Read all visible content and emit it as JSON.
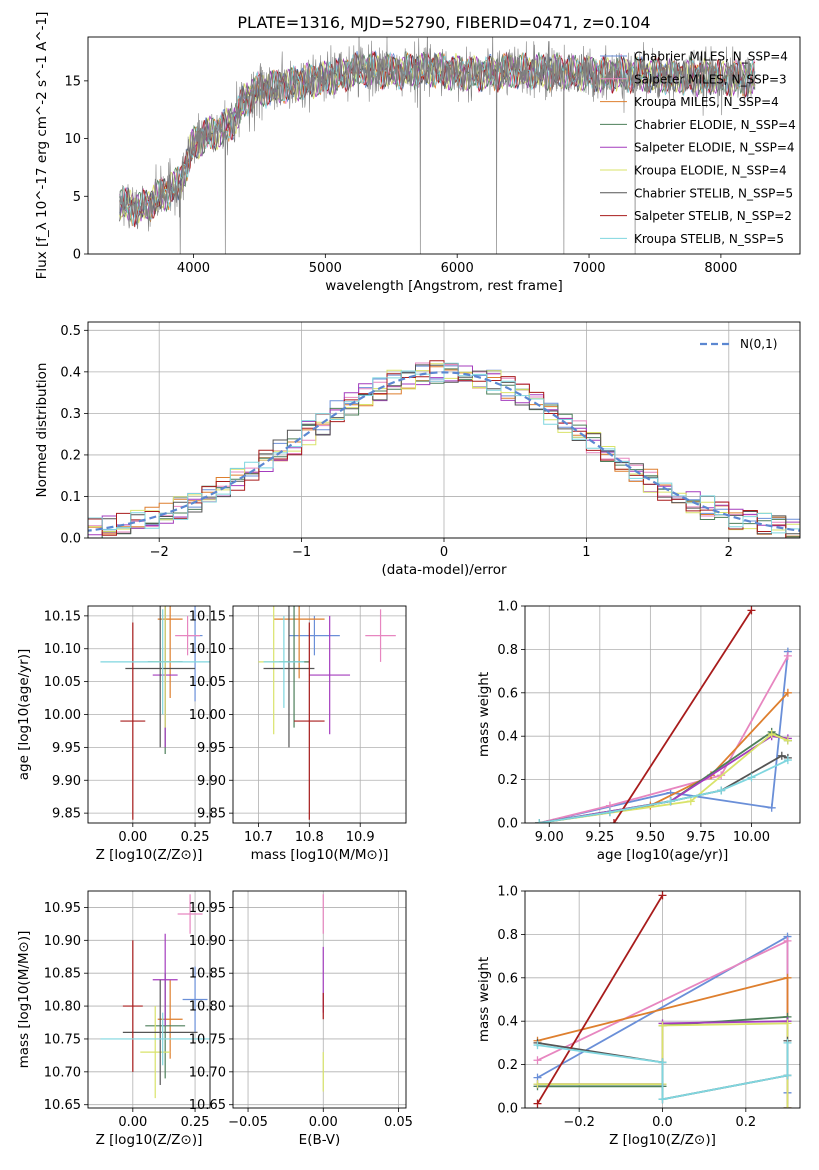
{
  "colors": {
    "chabrier_miles": "#6a8fd8",
    "salpeter_miles": "#e786c0",
    "kroupa_miles": "#de7f2e",
    "chabrier_elodie": "#4d7f5a",
    "salpeter_elodie": "#a43cbe",
    "kroupa_elodie": "#d9e36a",
    "chabrier_stelib": "#555555",
    "salpeter_stelib": "#a81c1c",
    "kroupa_stelib": "#7fd6df",
    "data": "#7f7f7f",
    "gaussian": "#5b87d1",
    "grid": "#b0b0b0"
  },
  "chart_data": [
    {
      "type": "line",
      "title": "PLATE=1316, MJD=52790, FIBERID=0471, z=0.104",
      "xlabel": "wavelength [Angstrom, rest frame]",
      "ylabel": "Flux [f_λ 10^-17 erg cm^-2 s^-1 A^-1]",
      "xlim": [
        3200,
        8600
      ],
      "ylim": [
        0,
        18.8
      ],
      "xticks": [
        "4000",
        "5000",
        "6000",
        "7000",
        "8000"
      ],
      "yticks": [
        "0",
        "5",
        "10",
        "15"
      ],
      "grid": false,
      "legend": "upper right",
      "legend_entries": [
        "Chabrier MILES, N_SSP=4",
        "Salpeter MILES, N_SSP=3",
        "Kroupa MILES, N_SSP=4",
        "Chabrier ELODIE, N_SSP=4",
        "Salpeter ELODIE, N_SSP=4",
        "Kroupa ELODIE, N_SSP=4",
        "Chabrier STELIB, N_SSP=5",
        "Salpeter STELIB, N_SSP=2",
        "Kroupa STELIB, N_SSP=5"
      ],
      "continuum_x": [
        3450,
        3600,
        3750,
        3900,
        4000,
        4100,
        4200,
        4300,
        4400,
        4500,
        4700,
        4900,
        5100,
        5300,
        5500,
        5800,
        6100,
        6400,
        6700,
        7000,
        7300,
        7600,
        7900,
        8250
      ],
      "continuum_y": [
        4.3,
        3.9,
        5.0,
        6.2,
        9.5,
        10.3,
        10.7,
        11.5,
        13.5,
        14.2,
        14.6,
        15.0,
        15.5,
        16.0,
        15.8,
        16.0,
        15.6,
        15.8,
        15.8,
        15.6,
        15.6,
        15.4,
        15.3,
        15.2
      ]
    },
    {
      "type": "histogram",
      "xlabel": "(data-model)/error",
      "ylabel": "Normed distribution",
      "xlim": [
        -2.5,
        2.5
      ],
      "ylim": [
        0,
        0.52
      ],
      "xticks": [
        "−2",
        "−1",
        "0",
        "1",
        "2"
      ],
      "yticks": [
        "0.0",
        "0.1",
        "0.2",
        "0.3",
        "0.4",
        "0.5"
      ],
      "grid": true,
      "legend": "upper right",
      "legend_entries": [
        "N(0,1)"
      ],
      "bin_width": 0.1
    },
    {
      "type": "scatter",
      "xlabel": "Z [log10(Z/Z⊙)]",
      "ylabel": "age [log10(age/yr)]",
      "xlim": [
        -0.18,
        0.31
      ],
      "ylim": [
        9.835,
        10.165
      ],
      "xticks": [
        "0.00",
        "0.25"
      ],
      "yticks": [
        "9.85",
        "9.90",
        "9.95",
        "10.00",
        "10.05",
        "10.10",
        "10.15"
      ],
      "grid": true,
      "points": [
        {
          "x": 0.25,
          "y": 10.12,
          "xerr": 0.03,
          "yerr": 0.1,
          "color": "chabrier_miles"
        },
        {
          "x": 0.22,
          "y": 10.12,
          "xerr": 0.05,
          "yerr": 0.03,
          "color": "salpeter_miles"
        },
        {
          "x": 0.15,
          "y": 10.145,
          "xerr": 0.05,
          "yerr": 0.12,
          "color": "kroupa_miles"
        },
        {
          "x": 0.13,
          "y": 10.08,
          "xerr": 0.07,
          "yerr": 0.14,
          "color": "chabrier_elodie"
        },
        {
          "x": 0.13,
          "y": 10.06,
          "xerr": 0.05,
          "yerr": 0.11,
          "color": "salpeter_elodie"
        },
        {
          "x": 0.13,
          "y": 10.08,
          "xerr": 0.05,
          "yerr": 0.1,
          "color": "kroupa_elodie"
        },
        {
          "x": 0.11,
          "y": 10.07,
          "xerr": 0.14,
          "yerr": 0.12,
          "color": "chabrier_stelib"
        },
        {
          "x": 0.0,
          "y": 9.99,
          "xerr": 0.05,
          "yerr": 0.15,
          "color": "salpeter_stelib"
        },
        {
          "x": 0.12,
          "y": 10.08,
          "xerr": 0.25,
          "yerr": 0.08,
          "color": "kroupa_stelib"
        }
      ]
    },
    {
      "type": "scatter",
      "xlabel": "mass [log10(M/M⊙)]",
      "ylabel": "",
      "xlim": [
        10.65,
        10.99
      ],
      "ylim": [
        9.835,
        10.165
      ],
      "xticks": [
        "10.7",
        "10.8",
        "10.9"
      ],
      "yticks": [
        "9.85",
        "9.90",
        "9.95",
        "10.00",
        "10.05",
        "10.10",
        "10.15"
      ],
      "grid": true,
      "points": [
        {
          "x": 10.81,
          "y": 10.12,
          "xerr": 0.05,
          "yerr": 0.03,
          "color": "chabrier_miles"
        },
        {
          "x": 10.94,
          "y": 10.12,
          "xerr": 0.03,
          "yerr": 0.04,
          "color": "salpeter_miles"
        },
        {
          "x": 10.78,
          "y": 10.145,
          "xerr": 0.05,
          "yerr": 0.09,
          "color": "kroupa_miles"
        },
        {
          "x": 10.77,
          "y": 10.08,
          "xerr": 0.03,
          "yerr": 0.1,
          "color": "chabrier_elodie"
        },
        {
          "x": 10.84,
          "y": 10.06,
          "xerr": 0.04,
          "yerr": 0.09,
          "color": "salpeter_elodie"
        },
        {
          "x": 10.73,
          "y": 10.08,
          "xerr": 0.03,
          "yerr": 0.11,
          "color": "kroupa_elodie"
        },
        {
          "x": 10.76,
          "y": 10.07,
          "xerr": 0.05,
          "yerr": 0.12,
          "color": "chabrier_stelib"
        },
        {
          "x": 10.8,
          "y": 9.99,
          "xerr": 0.03,
          "yerr": 0.15,
          "color": "salpeter_stelib"
        },
        {
          "x": 10.75,
          "y": 10.08,
          "xerr": 0.04,
          "yerr": 0.07,
          "color": "kroupa_stelib"
        }
      ]
    },
    {
      "type": "line",
      "xlabel": "age [log10(age/yr)]",
      "ylabel": "mass weight",
      "xlim": [
        8.88,
        10.24
      ],
      "ylim": [
        0,
        1.0
      ],
      "xticks": [
        "9.00",
        "9.25",
        "9.50",
        "9.75",
        "10.00"
      ],
      "yticks": [
        "0.0",
        "0.2",
        "0.4",
        "0.6",
        "0.8",
        "1.0"
      ],
      "grid": true,
      "series": [
        {
          "color": "chabrier_miles",
          "x": [
            8.95,
            9.6,
            10.1,
            10.18
          ],
          "y": [
            0.0,
            0.14,
            0.07,
            0.79
          ]
        },
        {
          "color": "salpeter_miles",
          "x": [
            8.95,
            9.3,
            9.85,
            10.18
          ],
          "y": [
            0.0,
            0.08,
            0.22,
            0.77
          ]
        },
        {
          "color": "kroupa_miles",
          "x": [
            8.95,
            9.5,
            9.8,
            10.18
          ],
          "y": [
            0.0,
            0.08,
            0.22,
            0.6
          ]
        },
        {
          "color": "chabrier_elodie",
          "x": [
            8.95,
            9.6,
            10.1,
            10.18
          ],
          "y": [
            0.0,
            0.1,
            0.42,
            0.38
          ]
        },
        {
          "color": "salpeter_elodie",
          "x": [
            8.95,
            9.6,
            10.1,
            10.18
          ],
          "y": [
            0.0,
            0.1,
            0.4,
            0.39
          ]
        },
        {
          "color": "kroupa_elodie",
          "x": [
            8.95,
            9.7,
            10.1,
            10.18
          ],
          "y": [
            0.0,
            0.1,
            0.41,
            0.38
          ]
        },
        {
          "color": "chabrier_stelib",
          "x": [
            8.95,
            9.3,
            9.6,
            9.85,
            10.15,
            10.18
          ],
          "y": [
            0.0,
            0.05,
            0.1,
            0.15,
            0.31,
            0.3
          ]
        },
        {
          "color": "salpeter_stelib",
          "x": [
            9.32,
            10.0
          ],
          "y": [
            0.0,
            0.98
          ]
        },
        {
          "color": "kroupa_stelib",
          "x": [
            8.95,
            9.3,
            9.6,
            9.85,
            10.0,
            10.18
          ],
          "y": [
            0.0,
            0.05,
            0.1,
            0.15,
            0.21,
            0.29
          ]
        }
      ]
    },
    {
      "type": "scatter",
      "xlabel": "Z [log10(Z/Z⊙)]",
      "ylabel": "mass [log10(M/M⊙)]",
      "xlim": [
        -0.18,
        0.31
      ],
      "ylim": [
        10.645,
        10.975
      ],
      "xticks": [
        "0.00",
        "0.25"
      ],
      "yticks": [
        "10.65",
        "10.70",
        "10.75",
        "10.80",
        "10.85",
        "10.90",
        "10.95"
      ],
      "grid": true,
      "points": [
        {
          "x": 0.25,
          "y": 10.81,
          "xerr": 0.05,
          "yerr": 0.05,
          "color": "chabrier_miles"
        },
        {
          "x": 0.23,
          "y": 10.94,
          "xerr": 0.05,
          "yerr": 0.03,
          "color": "salpeter_miles"
        },
        {
          "x": 0.15,
          "y": 10.78,
          "xerr": 0.05,
          "yerr": 0.06,
          "color": "kroupa_miles"
        },
        {
          "x": 0.13,
          "y": 10.77,
          "xerr": 0.08,
          "yerr": 0.08,
          "color": "chabrier_elodie"
        },
        {
          "x": 0.13,
          "y": 10.84,
          "xerr": 0.05,
          "yerr": 0.07,
          "color": "salpeter_elodie"
        },
        {
          "x": 0.09,
          "y": 10.73,
          "xerr": 0.06,
          "yerr": 0.07,
          "color": "kroupa_elodie"
        },
        {
          "x": 0.11,
          "y": 10.76,
          "xerr": 0.15,
          "yerr": 0.08,
          "color": "chabrier_stelib"
        },
        {
          "x": 0.0,
          "y": 10.8,
          "xerr": 0.04,
          "yerr": 0.1,
          "color": "salpeter_stelib"
        },
        {
          "x": 0.12,
          "y": 10.75,
          "xerr": 0.25,
          "yerr": 0.04,
          "color": "kroupa_stelib"
        }
      ]
    },
    {
      "type": "scatter",
      "xlabel": "E(B-V)",
      "ylabel": "",
      "xlim": [
        -0.06,
        0.055
      ],
      "ylim": [
        10.645,
        10.975
      ],
      "xticks": [
        "−0.05",
        "0.00",
        "0.05"
      ],
      "yticks": [
        "10.65",
        "10.70",
        "10.75",
        "10.80",
        "10.85",
        "10.90",
        "10.95"
      ],
      "grid": true,
      "points": [
        {
          "x": 0.0,
          "y": 10.94,
          "xerr": 0.0,
          "yerr": 0.03,
          "color": "salpeter_miles"
        },
        {
          "x": 0.0,
          "y": 10.84,
          "xerr": 0.0,
          "yerr": 0.05,
          "color": "salpeter_elodie"
        },
        {
          "x": 0.0,
          "y": 10.8,
          "xerr": 0.0,
          "yerr": 0.02,
          "color": "salpeter_stelib"
        },
        {
          "x": 0.0,
          "y": 10.7,
          "xerr": 0.0,
          "yerr": 0.03,
          "color": "kroupa_elodie"
        }
      ]
    },
    {
      "type": "line",
      "xlabel": "Z [log10(Z/Z⊙)]",
      "ylabel": "mass weight",
      "xlim": [
        -0.33,
        0.33
      ],
      "ylim": [
        0,
        1.0
      ],
      "xticks": [
        "−0.2",
        "0.0",
        "0.2"
      ],
      "yticks": [
        "0.0",
        "0.2",
        "0.4",
        "0.6",
        "0.8",
        "1.0"
      ],
      "grid": true,
      "series": [
        {
          "color": "chabrier_miles",
          "x": [
            -0.3,
            0.3,
            0.3
          ],
          "y": [
            0.14,
            0.79,
            0.07
          ]
        },
        {
          "color": "salpeter_miles",
          "x": [
            -0.3,
            0.3,
            0.3
          ],
          "y": [
            0.22,
            0.77,
            0.0
          ]
        },
        {
          "color": "kroupa_miles",
          "x": [
            -0.3,
            0.3,
            0.3
          ],
          "y": [
            0.31,
            0.6,
            0.0
          ]
        },
        {
          "color": "chabrier_elodie",
          "x": [
            -0.3,
            0.0,
            0.0,
            0.3,
            0.3
          ],
          "y": [
            0.1,
            0.1,
            0.38,
            0.42,
            0.0
          ]
        },
        {
          "color": "salpeter_elodie",
          "x": [
            -0.3,
            0.0,
            0.0,
            0.3,
            0.3
          ],
          "y": [
            0.11,
            0.11,
            0.39,
            0.4,
            0.0
          ]
        },
        {
          "color": "kroupa_elodie",
          "x": [
            -0.3,
            0.0,
            0.0,
            0.3,
            0.3
          ],
          "y": [
            0.11,
            0.11,
            0.38,
            0.39,
            0.0
          ]
        },
        {
          "color": "chabrier_stelib",
          "x": [
            -0.3,
            0.0,
            0.0,
            0.3,
            0.3
          ],
          "y": [
            0.3,
            0.21,
            0.04,
            0.15,
            0.31
          ]
        },
        {
          "color": "salpeter_stelib",
          "x": [
            -0.3,
            0.0
          ],
          "y": [
            0.02,
            0.98
          ]
        },
        {
          "color": "kroupa_stelib",
          "x": [
            -0.3,
            0.0,
            0.0,
            0.3,
            0.3
          ],
          "y": [
            0.29,
            0.21,
            0.04,
            0.15,
            0.3
          ]
        }
      ]
    }
  ]
}
